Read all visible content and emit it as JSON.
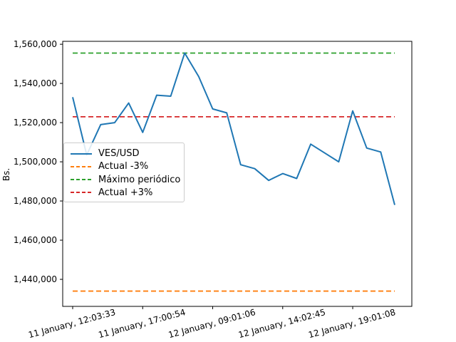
{
  "figure": {
    "background": "#ffffff",
    "axis_color": "#000000"
  },
  "chart_data": {
    "type": "line",
    "title": "",
    "xlabel": "",
    "ylabel": "Bs.",
    "grid": false,
    "legend_position": "center-left",
    "x_type": "categorical-time",
    "n_points": 24,
    "x_tick_indices": [
      0,
      5,
      10,
      15,
      20
    ],
    "x_tick_labels": [
      "11 January, 12:03:33",
      "11 January, 17:00:54",
      "12 January, 09:01:06",
      "12 January, 14:02:45",
      "12 January, 19:01:08"
    ],
    "x_tick_rotation_deg": -15,
    "y_ticks": [
      1440000,
      1460000,
      1480000,
      1500000,
      1520000,
      1540000,
      1560000
    ],
    "ylim": [
      1426200,
      1561500
    ],
    "series": [
      {
        "name": "VES/USD",
        "style": "solid",
        "color": "#1f77b4",
        "values": [
          1533000,
          1503500,
          1519000,
          1520000,
          1530000,
          1515000,
          1534000,
          1533500,
          1555500,
          1543500,
          1527000,
          1525000,
          1498500,
          1496500,
          1490500,
          1494000,
          1491500,
          1509000,
          1504500,
          1500000,
          1526000,
          1507000,
          1505000,
          1478000
        ]
      },
      {
        "name": "Actual -3%",
        "style": "dashed",
        "color": "#ff7f0e",
        "constant": 1434000
      },
      {
        "name": "Máximo periódico",
        "style": "dashed",
        "color": "#2ca02c",
        "constant": 1555500
      },
      {
        "name": "Actual +3%",
        "style": "dashed",
        "color": "#d62728",
        "constant": 1523000
      }
    ]
  }
}
